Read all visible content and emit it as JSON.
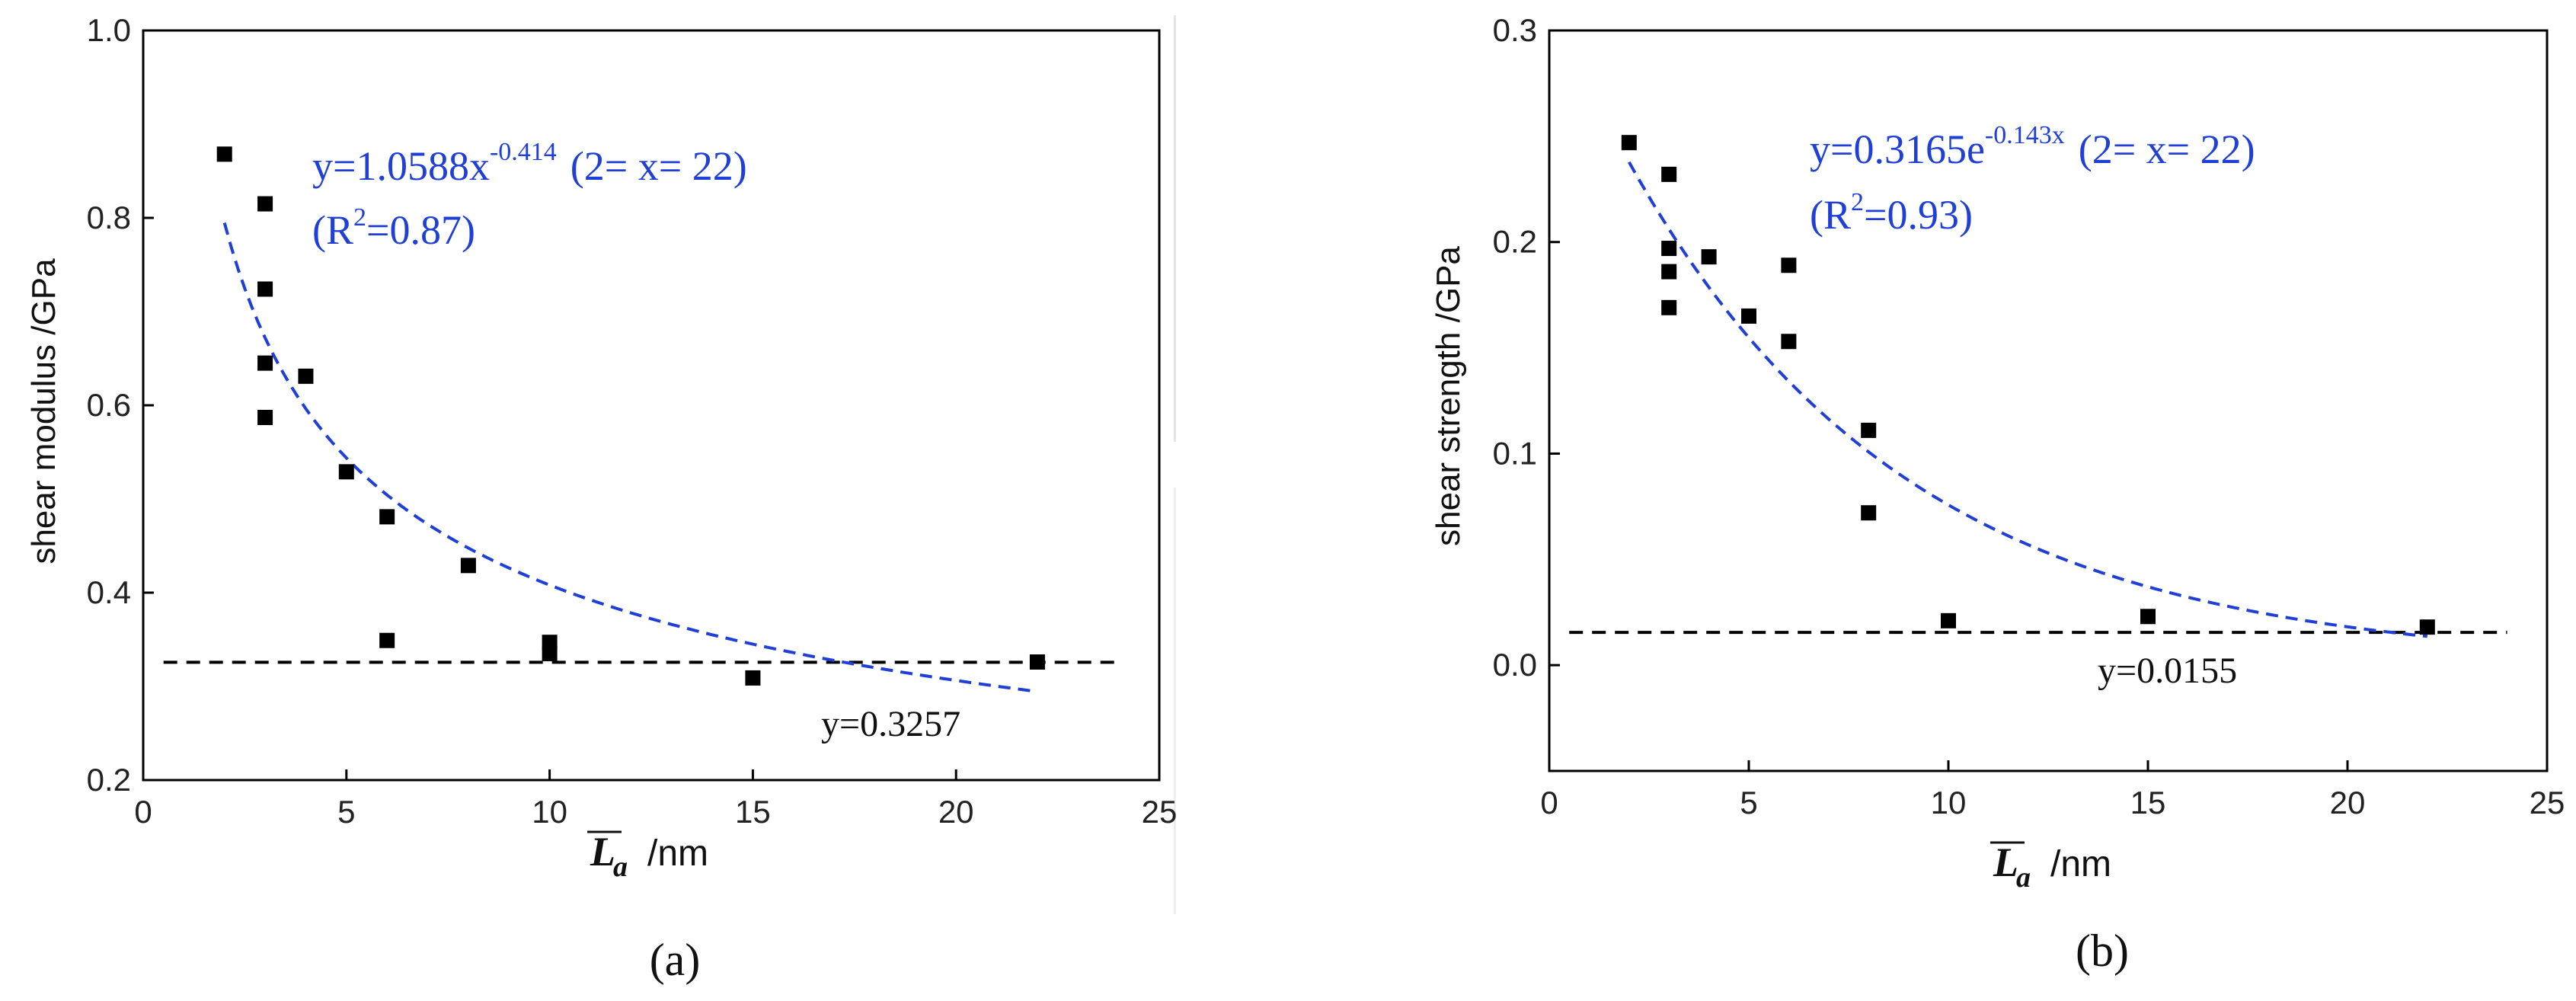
{
  "chart_data": [
    {
      "type": "scatter",
      "panel_label": "(a)",
      "ylabel": "shear modulus /GPa",
      "xlabel_symbol": "L",
      "xlabel_sub": "a",
      "xlabel_unit": "/nm",
      "xlim": [
        0,
        25
      ],
      "ylim": [
        0.2,
        1.0
      ],
      "x_ticks": [
        0,
        5,
        10,
        15,
        20,
        25
      ],
      "y_ticks": [
        0.2,
        0.4,
        0.6,
        0.8,
        1.0
      ],
      "x_tick_labels": [
        "0",
        "5",
        "10",
        "15",
        "20",
        "25"
      ],
      "y_tick_labels": [
        "0.2",
        "0.4",
        "0.6",
        "0.8",
        "1.0"
      ],
      "points": [
        {
          "x": 2,
          "y": 0.868
        },
        {
          "x": 3,
          "y": 0.815
        },
        {
          "x": 3,
          "y": 0.724
        },
        {
          "x": 3,
          "y": 0.645
        },
        {
          "x": 3,
          "y": 0.587
        },
        {
          "x": 4,
          "y": 0.631
        },
        {
          "x": 5,
          "y": 0.529
        },
        {
          "x": 6,
          "y": 0.481
        },
        {
          "x": 6,
          "y": 0.349
        },
        {
          "x": 8,
          "y": 0.429
        },
        {
          "x": 10,
          "y": 0.347
        },
        {
          "x": 10,
          "y": 0.335
        },
        {
          "x": 15,
          "y": 0.309
        },
        {
          "x": 22,
          "y": 0.326
        }
      ],
      "fit": {
        "kind": "power",
        "a": 1.0588,
        "b": -0.414,
        "x_from": 2,
        "x_to": 22
      },
      "fit_label": {
        "prefix": "y=1.0588x",
        "exponent": "-0.414",
        "range": "(2=  x=  22)",
        "r2_open": "(R",
        "r2_sup": "2",
        "r2_close": "=0.87)"
      },
      "constant_line": {
        "y": 0.3257,
        "label": "y=0.3257"
      },
      "colors": {
        "points": "#000000",
        "fit": "#1f3fd6",
        "constant": "#000000"
      }
    },
    {
      "type": "scatter",
      "panel_label": "(b)",
      "ylabel": "shear strength /GPa",
      "xlabel_symbol": "L",
      "xlabel_sub": "a",
      "xlabel_unit": "/nm",
      "xlim": [
        0,
        25
      ],
      "ylim": [
        -0.05,
        0.3
      ],
      "x_ticks": [
        0,
        5,
        10,
        15,
        20,
        25
      ],
      "y_ticks": [
        0.0,
        0.1,
        0.2,
        0.3
      ],
      "x_tick_labels": [
        "0",
        "5",
        "10",
        "15",
        "20",
        "25"
      ],
      "y_tick_labels": [
        "0.0",
        "0.1",
        "0.2",
        "0.3"
      ],
      "points": [
        {
          "x": 2,
          "y": 0.247
        },
        {
          "x": 3,
          "y": 0.232
        },
        {
          "x": 3,
          "y": 0.197
        },
        {
          "x": 3,
          "y": 0.186
        },
        {
          "x": 3,
          "y": 0.169
        },
        {
          "x": 4,
          "y": 0.193
        },
        {
          "x": 5,
          "y": 0.165
        },
        {
          "x": 6,
          "y": 0.189
        },
        {
          "x": 6,
          "y": 0.153
        },
        {
          "x": 8,
          "y": 0.111
        },
        {
          "x": 8,
          "y": 0.072
        },
        {
          "x": 10,
          "y": 0.021
        },
        {
          "x": 15,
          "y": 0.023
        },
        {
          "x": 22,
          "y": 0.018
        }
      ],
      "fit": {
        "kind": "exp",
        "a": 0.3165,
        "b": -0.143,
        "x_from": 2,
        "x_to": 22
      },
      "fit_label": {
        "prefix": "y=0.3165e",
        "exponent": "-0.143x",
        "range": "(2=  x=  22)",
        "r2_open": "(R",
        "r2_sup": "2",
        "r2_close": "=0.93)"
      },
      "constant_line": {
        "y": 0.0155,
        "label": "y=0.0155"
      },
      "colors": {
        "points": "#000000",
        "fit": "#1f3fd6",
        "constant": "#000000"
      }
    }
  ]
}
